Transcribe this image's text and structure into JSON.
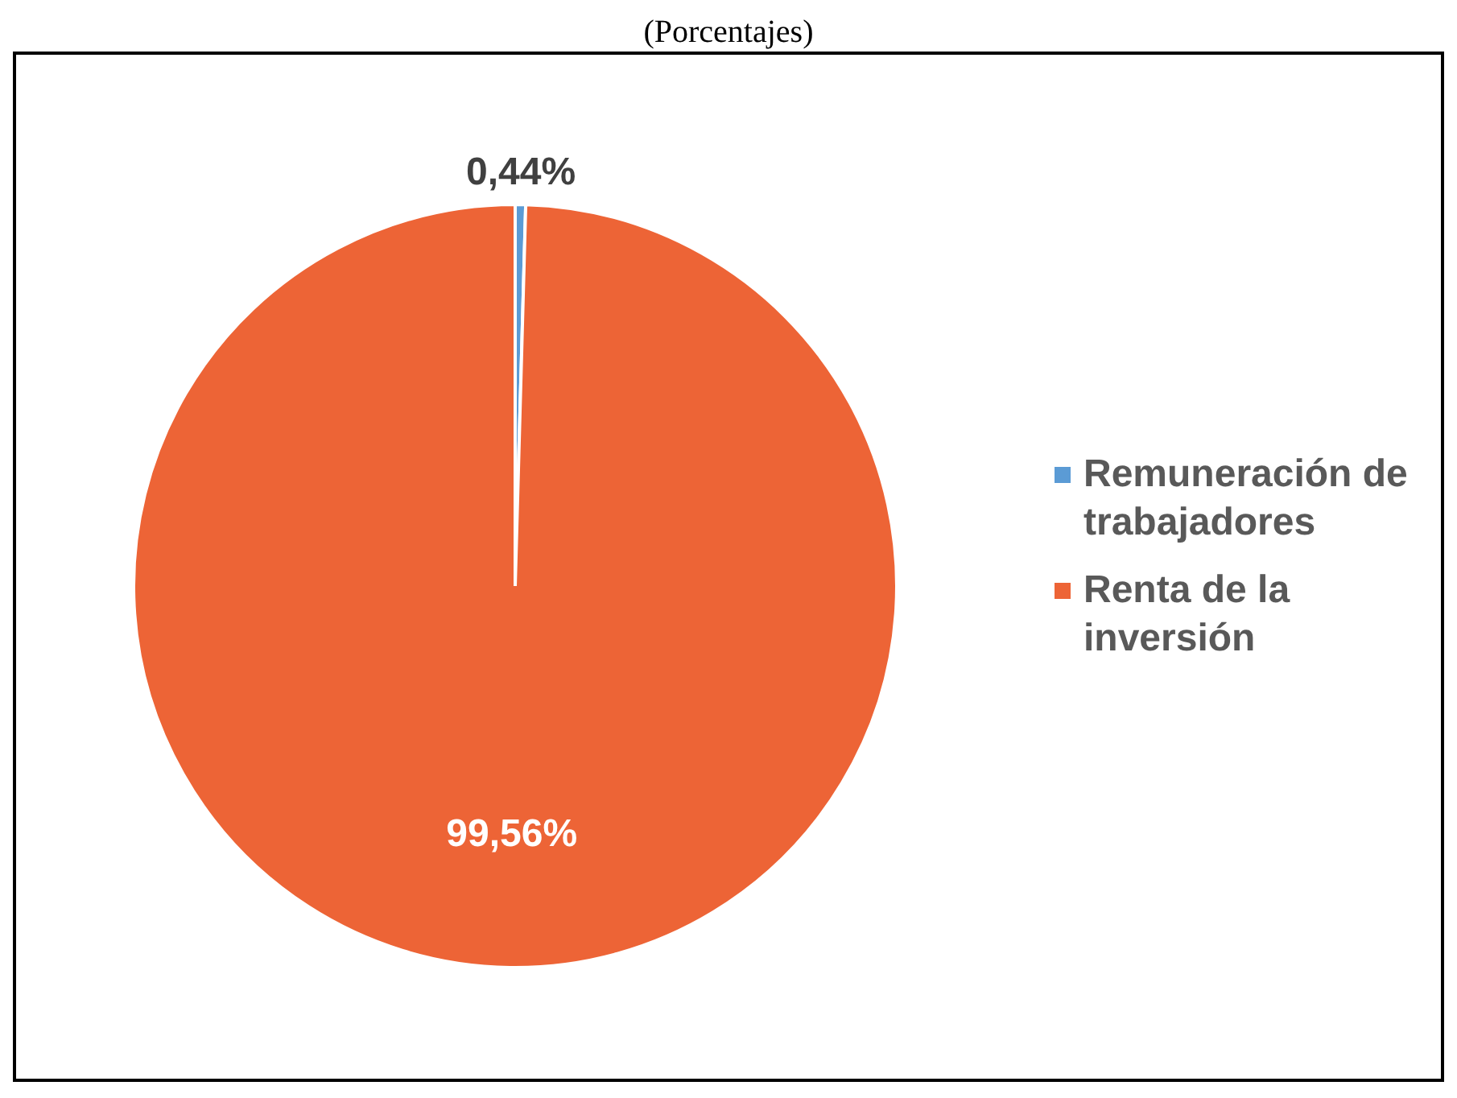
{
  "chart_data": {
    "type": "pie",
    "subtitle": "(Porcentajes)",
    "categories": [
      "Remuneración de trabajadores",
      "Renta de la inversión"
    ],
    "values": [
      0.44,
      99.56
    ],
    "colors": [
      "#5b9bd5",
      "#ed6436"
    ],
    "value_labels": [
      "0,44%",
      "99,56%"
    ],
    "legend": "right"
  }
}
